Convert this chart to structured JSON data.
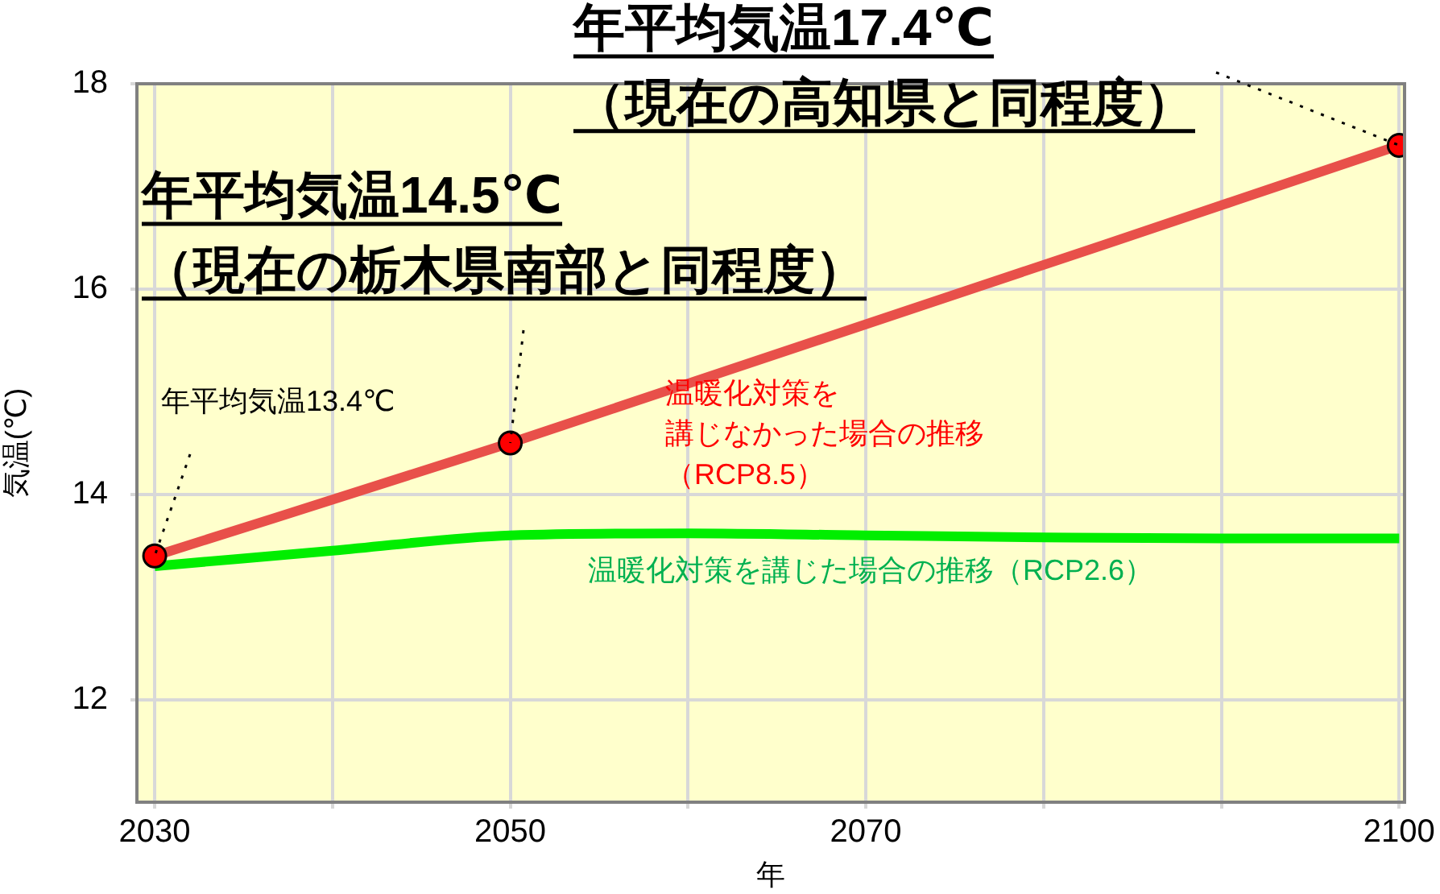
{
  "chart_data": {
    "type": "line",
    "xlabel": "年",
    "ylabel": "気温(℃)",
    "xlim": [
      2029,
      2100.3
    ],
    "ylim": [
      11,
      18
    ],
    "xticks": [
      2030,
      {
        "value": 2040,
        "label": null
      },
      2050,
      {
        "value": 2060,
        "label": null
      },
      2070,
      {
        "value": 2080,
        "label": null
      },
      {
        "value": 2090,
        "label": null
      },
      2100
    ],
    "yticks": [
      12,
      14,
      16,
      18
    ],
    "grid": true,
    "line_style": "solid",
    "series": [
      {
        "name": "温暖化対策を講じなかった場合の推移（RCP8.5）",
        "color": "#e8504a",
        "x": [
          2030,
          2050,
          2100
        ],
        "values": [
          13.4,
          14.5,
          17.4
        ],
        "marker": "circle"
      },
      {
        "name": "温暖化対策を講じた場合の推移（RCP2.6）",
        "color": "#00ee00",
        "x": [
          2030,
          2040,
          2050,
          2060,
          2070,
          2080,
          2090,
          2100
        ],
        "values": [
          13.3,
          13.45,
          13.6,
          13.62,
          13.6,
          13.58,
          13.57,
          13.57
        ],
        "marker": "none"
      }
    ],
    "annotations": [
      {
        "text": "年平均気温13.4℃",
        "x": 2030,
        "y": 13.4
      },
      {
        "text": "年平均気温14.5℃\n（現在の栃木県南部と同程度）",
        "x": 2050,
        "y": 14.5
      },
      {
        "text": "年平均気温17.4℃\n（現在の高知県と同程度）",
        "x": 2100,
        "y": 17.4
      }
    ]
  }
}
